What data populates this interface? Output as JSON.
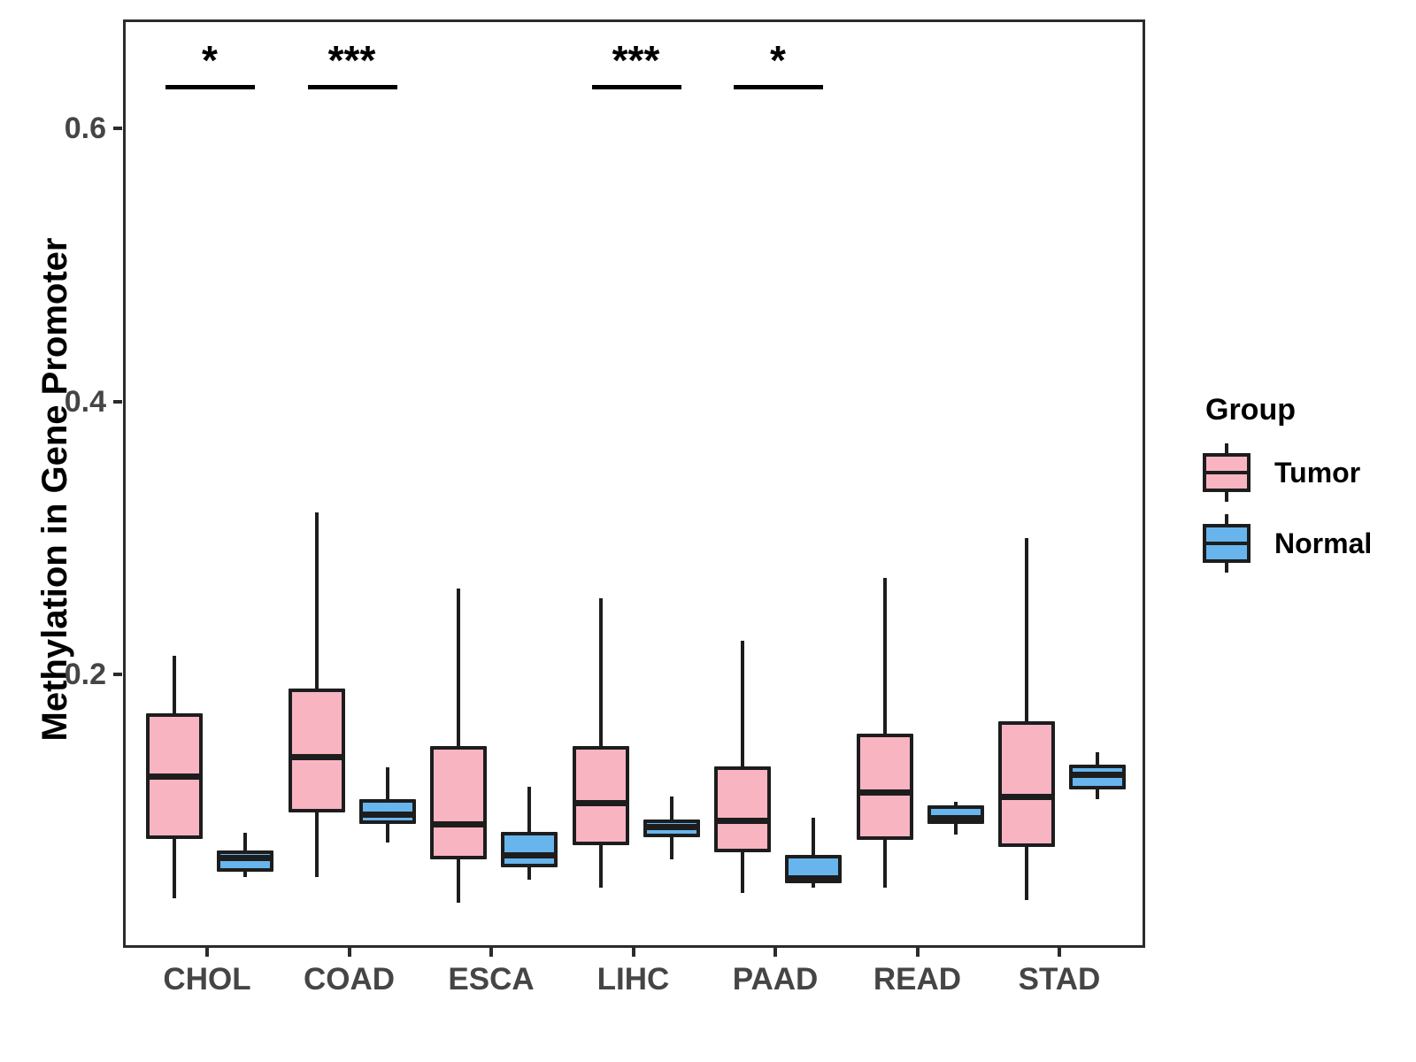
{
  "chart_data": {
    "type": "boxplot",
    "title": "",
    "xlabel": "",
    "ylabel": "Methylation in Gene Promoter",
    "ylim": [
      0,
      0.68
    ],
    "yticks": [
      0.2,
      0.4,
      0.6
    ],
    "ytick_labels": [
      "0.2",
      "0.4",
      "0.6"
    ],
    "grid": false,
    "legend_position": "right",
    "categories": [
      "CHOL",
      "COAD",
      "ESCA",
      "LIHC",
      "PAAD",
      "READ",
      "STAD"
    ],
    "groups": [
      {
        "name": "Tumor",
        "color": "#F9B4C2"
      },
      {
        "name": "Normal",
        "color": "#67B5EC"
      }
    ],
    "line_color": "#1d1d1d",
    "boxes": [
      {
        "category": "CHOL",
        "tumor": {
          "low": 0.038,
          "q1": 0.082,
          "median": 0.128,
          "q3": 0.174,
          "high": 0.216
        },
        "normal": {
          "low": 0.054,
          "q1": 0.058,
          "median": 0.068,
          "q3": 0.073,
          "high": 0.086
        },
        "sig": "*"
      },
      {
        "category": "COAD",
        "tumor": {
          "low": 0.054,
          "q1": 0.101,
          "median": 0.142,
          "q3": 0.192,
          "high": 0.321
        },
        "normal": {
          "low": 0.079,
          "q1": 0.093,
          "median": 0.1,
          "q3": 0.111,
          "high": 0.134
        },
        "sig": "***"
      },
      {
        "category": "ESCA",
        "tumor": {
          "low": 0.035,
          "q1": 0.067,
          "median": 0.093,
          "q3": 0.15,
          "high": 0.265
        },
        "normal": {
          "low": 0.052,
          "q1": 0.061,
          "median": 0.07,
          "q3": 0.087,
          "high": 0.12
        },
        "sig": null
      },
      {
        "category": "LIHC",
        "tumor": {
          "low": 0.046,
          "q1": 0.077,
          "median": 0.108,
          "q3": 0.15,
          "high": 0.258
        },
        "normal": {
          "low": 0.067,
          "q1": 0.083,
          "median": 0.091,
          "q3": 0.096,
          "high": 0.113
        },
        "sig": "***"
      },
      {
        "category": "PAAD",
        "tumor": {
          "low": 0.042,
          "q1": 0.072,
          "median": 0.095,
          "q3": 0.135,
          "high": 0.227
        },
        "normal": {
          "low": 0.046,
          "q1": 0.049,
          "median": 0.053,
          "q3": 0.07,
          "high": 0.097
        },
        "sig": "*"
      },
      {
        "category": "READ",
        "tumor": {
          "low": 0.046,
          "q1": 0.081,
          "median": 0.116,
          "q3": 0.159,
          "high": 0.273
        },
        "normal": {
          "low": 0.085,
          "q1": 0.093,
          "median": 0.097,
          "q3": 0.106,
          "high": 0.109
        },
        "sig": null
      },
      {
        "category": "STAD",
        "tumor": {
          "low": 0.037,
          "q1": 0.076,
          "median": 0.113,
          "q3": 0.168,
          "high": 0.302
        },
        "normal": {
          "low": 0.111,
          "q1": 0.118,
          "median": 0.129,
          "q3": 0.136,
          "high": 0.145
        },
        "sig": null
      }
    ],
    "significance_bar_value": 0.634,
    "legend": {
      "title": "Group"
    }
  }
}
